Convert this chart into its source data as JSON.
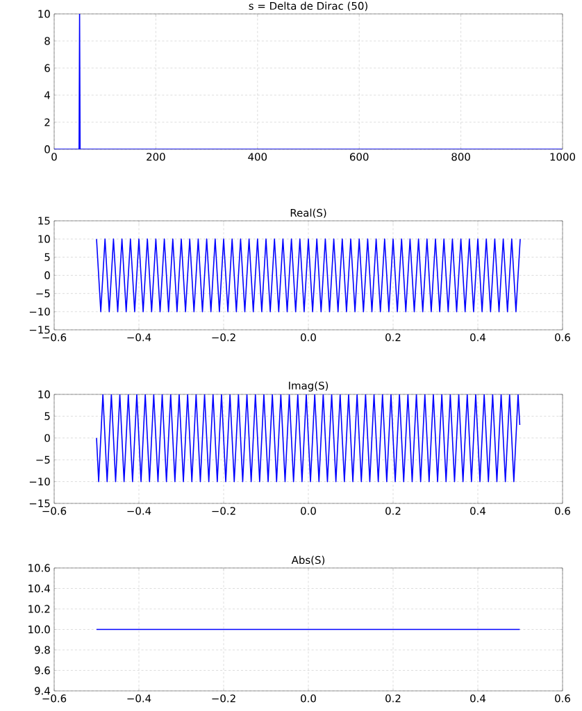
{
  "chart_data": [
    {
      "type": "line",
      "title": "s = Delta de Dirac (50)",
      "color": "#0000ff",
      "grid": true,
      "x": [
        0,
        49,
        50,
        51,
        999
      ],
      "values": [
        0,
        0,
        10,
        0,
        0
      ],
      "xlim": [
        0,
        1000
      ],
      "ylim": [
        0,
        10
      ],
      "xticks": [
        0,
        200,
        400,
        600,
        800,
        1000
      ],
      "yticks": [
        0,
        2,
        4,
        6,
        8,
        10
      ]
    },
    {
      "type": "line",
      "title": "Real(S)",
      "color": "#0000ff",
      "grid": true,
      "x": [
        -0.5,
        -0.49,
        -0.48,
        -0.47,
        -0.46,
        -0.45,
        -0.44,
        -0.43,
        -0.42,
        -0.41,
        -0.4,
        -0.39,
        -0.38,
        -0.37,
        -0.36,
        -0.35,
        -0.34,
        -0.33,
        -0.32,
        -0.31,
        -0.3,
        -0.29,
        -0.28,
        -0.27,
        -0.26,
        -0.25,
        -0.24,
        -0.23,
        -0.22,
        -0.21,
        -0.2,
        -0.19,
        -0.18,
        -0.17,
        -0.16,
        -0.15,
        -0.14,
        -0.13,
        -0.12,
        -0.11,
        -0.1,
        -0.09,
        -0.08,
        -0.07,
        -0.06,
        -0.05,
        -0.04,
        -0.03,
        -0.02,
        -0.01,
        0,
        0.01,
        0.02,
        0.03,
        0.04,
        0.05,
        0.06,
        0.07,
        0.08,
        0.09,
        0.1,
        0.11,
        0.12,
        0.13,
        0.14,
        0.15,
        0.16,
        0.17,
        0.18,
        0.19,
        0.2,
        0.21,
        0.22,
        0.23,
        0.24,
        0.25,
        0.26,
        0.27,
        0.28,
        0.29,
        0.3,
        0.31,
        0.32,
        0.33,
        0.34,
        0.35,
        0.36,
        0.37,
        0.38,
        0.39,
        0.4,
        0.41,
        0.42,
        0.43,
        0.44,
        0.45,
        0.46,
        0.47,
        0.48,
        0.49,
        0.5
      ],
      "values": [
        10,
        -10,
        10,
        -10,
        10,
        -10,
        10,
        -10,
        10,
        -10,
        10,
        -10,
        10,
        -10,
        10,
        -10,
        10,
        -10,
        10,
        -10,
        10,
        -10,
        10,
        -10,
        10,
        -10,
        10,
        -10,
        10,
        -10,
        10,
        -10,
        10,
        -10,
        10,
        -10,
        10,
        -10,
        10,
        -10,
        10,
        -10,
        10,
        -10,
        10,
        -10,
        10,
        -10,
        10,
        -10,
        10,
        -10,
        10,
        -10,
        10,
        -10,
        10,
        -10,
        10,
        -10,
        10,
        -10,
        10,
        -10,
        10,
        -10,
        10,
        -10,
        10,
        -10,
        10,
        -10,
        10,
        -10,
        10,
        -10,
        10,
        -10,
        10,
        -10,
        10,
        -10,
        10,
        -10,
        10,
        -10,
        10,
        -10,
        10,
        -10,
        10,
        -10,
        10,
        -10,
        10,
        -10,
        10,
        -10,
        10,
        -10,
        10
      ],
      "xlim": [
        -0.6,
        0.6
      ],
      "ylim": [
        -15,
        15
      ],
      "xticks": [
        {
          "value": -0.6,
          "label": "−0.6"
        },
        {
          "value": -0.4,
          "label": "−0.4"
        },
        {
          "value": -0.2,
          "label": "−0.2"
        },
        {
          "value": 0,
          "label": "0.0"
        },
        0.2,
        0.4,
        0.6
      ],
      "yticks": [
        {
          "value": -15,
          "label": "−15"
        },
        {
          "value": -10,
          "label": "−10"
        },
        {
          "value": -5,
          "label": "−5"
        },
        0,
        5,
        10,
        15
      ]
    },
    {
      "type": "line",
      "title": "Imag(S)",
      "color": "#0000ff",
      "grid": true,
      "x": [
        -0.5,
        -0.495,
        -0.485,
        -0.475,
        -0.465,
        -0.455,
        -0.445,
        -0.435,
        -0.425,
        -0.415,
        -0.405,
        -0.395,
        -0.385,
        -0.375,
        -0.365,
        -0.355,
        -0.345,
        -0.335,
        -0.325,
        -0.315,
        -0.305,
        -0.295,
        -0.285,
        -0.275,
        -0.265,
        -0.255,
        -0.245,
        -0.235,
        -0.225,
        -0.215,
        -0.205,
        -0.195,
        -0.185,
        -0.175,
        -0.165,
        -0.155,
        -0.145,
        -0.135,
        -0.125,
        -0.115,
        -0.105,
        -0.095,
        -0.085,
        -0.075,
        -0.065,
        -0.055,
        -0.045,
        -0.035,
        -0.025,
        -0.015,
        -0.005,
        0.005,
        0.015,
        0.025,
        0.035,
        0.045,
        0.055,
        0.065,
        0.075,
        0.085,
        0.095,
        0.105,
        0.115,
        0.125,
        0.135,
        0.145,
        0.155,
        0.165,
        0.175,
        0.185,
        0.195,
        0.205,
        0.215,
        0.225,
        0.235,
        0.245,
        0.255,
        0.265,
        0.275,
        0.285,
        0.295,
        0.305,
        0.315,
        0.325,
        0.335,
        0.345,
        0.355,
        0.365,
        0.375,
        0.385,
        0.395,
        0.405,
        0.415,
        0.425,
        0.435,
        0.445,
        0.455,
        0.465,
        0.475,
        0.485,
        0.495,
        0.499
      ],
      "values": [
        0,
        -10,
        10,
        -10,
        10,
        -10,
        10,
        -10,
        10,
        -10,
        10,
        -10,
        10,
        -10,
        10,
        -10,
        10,
        -10,
        10,
        -10,
        10,
        -10,
        10,
        -10,
        10,
        -10,
        10,
        -10,
        10,
        -10,
        10,
        -10,
        10,
        -10,
        10,
        -10,
        10,
        -10,
        10,
        -10,
        10,
        -10,
        10,
        -10,
        10,
        -10,
        10,
        -10,
        10,
        -10,
        10,
        -10,
        10,
        -10,
        10,
        -10,
        10,
        -10,
        10,
        -10,
        10,
        -10,
        10,
        -10,
        10,
        -10,
        10,
        -10,
        10,
        -10,
        10,
        -10,
        10,
        -10,
        10,
        -10,
        10,
        -10,
        10,
        -10,
        10,
        -10,
        10,
        -10,
        10,
        -10,
        10,
        -10,
        10,
        -10,
        10,
        -10,
        10,
        -10,
        10,
        -10,
        10,
        -10,
        10,
        -10,
        10,
        3
      ],
      "xlim": [
        -0.6,
        0.6
      ],
      "ylim": [
        -15,
        10
      ],
      "xticks": [
        {
          "value": -0.6,
          "label": "−0.6"
        },
        {
          "value": -0.4,
          "label": "−0.4"
        },
        {
          "value": -0.2,
          "label": "−0.2"
        },
        {
          "value": 0,
          "label": "0.0"
        },
        0.2,
        0.4,
        0.6
      ],
      "yticks": [
        {
          "value": -15,
          "label": "−15"
        },
        {
          "value": -10,
          "label": "−10"
        },
        {
          "value": -5,
          "label": "−5"
        },
        0,
        5,
        10
      ]
    },
    {
      "type": "line",
      "title": "Abs(S)",
      "color": "#0000ff",
      "grid": true,
      "x": [
        -0.5,
        0.499
      ],
      "values": [
        10,
        10
      ],
      "xlim": [
        -0.6,
        0.6
      ],
      "ylim": [
        9.4,
        10.6
      ],
      "xticks": [
        {
          "value": -0.6,
          "label": "−0.6"
        },
        {
          "value": -0.4,
          "label": "−0.4"
        },
        {
          "value": -0.2,
          "label": "−0.2"
        },
        {
          "value": 0,
          "label": "0.0"
        },
        0.2,
        0.4,
        0.6
      ],
      "yticks": [
        9.4,
        9.6,
        9.8,
        {
          "value": 10,
          "label": "10.0"
        },
        10.2,
        10.4,
        10.6
      ]
    }
  ]
}
